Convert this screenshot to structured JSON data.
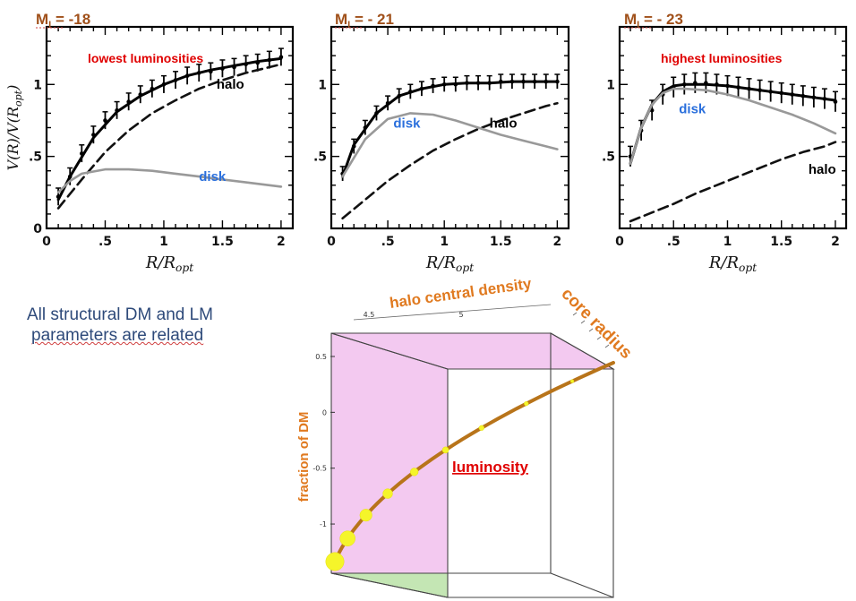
{
  "colors": {
    "panel_title": "#a0501a",
    "label_red": "#e00000",
    "label_blue": "#2a6fdc",
    "label_black": "#000000",
    "axis_text_orange": "#e07a20",
    "gray_curve": "#999999",
    "box_face": "#f3c9f0",
    "box_floor": "#c4e6b4",
    "curve3d": "#b8741a",
    "dots": "#f5f52a",
    "note_text": "#2e4a7a"
  },
  "note": {
    "line1": "All structural  DM and LM",
    "line2": "parameters are related"
  },
  "chart_data": [
    {
      "type": "line",
      "title": "M_I = -18",
      "annotation": "lowest luminosities",
      "xlabel": "R/R_opt",
      "ylabel": "V(R)/V(R_opt)",
      "xlim": [
        0,
        2.1
      ],
      "ylim": [
        0,
        1.4
      ],
      "xticks": [
        "0",
        ".5",
        "1",
        "1.5",
        "2"
      ],
      "yticks": [
        "0",
        ".5",
        "1"
      ],
      "series": [
        {
          "name": "data",
          "style": "points",
          "x": [
            0.1,
            0.2,
            0.3,
            0.4,
            0.5,
            0.6,
            0.7,
            0.8,
            0.9,
            1.0,
            1.1,
            1.2,
            1.3,
            1.4,
            1.5,
            1.6,
            1.7,
            1.8,
            1.9,
            2.0
          ],
          "y": [
            0.22,
            0.36,
            0.52,
            0.65,
            0.75,
            0.82,
            0.88,
            0.93,
            0.97,
            1.0,
            1.03,
            1.06,
            1.08,
            1.09,
            1.11,
            1.12,
            1.14,
            1.15,
            1.17,
            1.19
          ],
          "err": 0.06
        },
        {
          "name": "model",
          "style": "solid",
          "x": [
            0.1,
            0.2,
            0.4,
            0.6,
            0.8,
            1.0,
            1.2,
            1.4,
            1.6,
            1.8,
            2.0
          ],
          "y": [
            0.2,
            0.36,
            0.63,
            0.81,
            0.92,
            1.0,
            1.06,
            1.1,
            1.13,
            1.16,
            1.18
          ]
        },
        {
          "name": "halo",
          "style": "dashed",
          "x": [
            0.1,
            0.3,
            0.5,
            0.7,
            0.9,
            1.1,
            1.3,
            1.5,
            1.7,
            1.9,
            2.0
          ],
          "y": [
            0.14,
            0.34,
            0.53,
            0.68,
            0.8,
            0.89,
            0.97,
            1.03,
            1.08,
            1.12,
            1.14
          ]
        },
        {
          "name": "disk",
          "style": "gray",
          "x": [
            0.1,
            0.2,
            0.3,
            0.5,
            0.7,
            0.9,
            1.1,
            1.3,
            1.5,
            1.7,
            2.0
          ],
          "y": [
            0.25,
            0.33,
            0.38,
            0.41,
            0.41,
            0.4,
            0.38,
            0.36,
            0.34,
            0.32,
            0.29
          ]
        }
      ],
      "labels": [
        {
          "text": "halo",
          "x": 1.45,
          "y": 0.97,
          "color": "label_black"
        },
        {
          "text": "disk",
          "x": 1.3,
          "y": 0.33,
          "color": "label_blue"
        }
      ]
    },
    {
      "type": "line",
      "title": "M_I = - 21",
      "annotation": "",
      "xlabel": "R/R_opt",
      "ylabel": "",
      "xlim": [
        0,
        2.1
      ],
      "ylim": [
        0,
        1.4
      ],
      "xticks": [
        "0",
        ".5",
        "1",
        "1.5",
        "2"
      ],
      "yticks": [
        ".5",
        "1"
      ],
      "series": [
        {
          "name": "data",
          "style": "points",
          "x": [
            0.1,
            0.2,
            0.3,
            0.4,
            0.5,
            0.6,
            0.7,
            0.8,
            0.9,
            1.0,
            1.1,
            1.2,
            1.3,
            1.4,
            1.5,
            1.6,
            1.7,
            1.8,
            1.9,
            2.0
          ],
          "y": [
            0.38,
            0.57,
            0.7,
            0.8,
            0.87,
            0.92,
            0.95,
            0.97,
            0.99,
            1.0,
            1.0,
            1.01,
            1.01,
            1.01,
            1.02,
            1.02,
            1.02,
            1.02,
            1.02,
            1.02
          ],
          "err": 0.05
        },
        {
          "name": "model",
          "style": "solid",
          "x": [
            0.1,
            0.2,
            0.4,
            0.6,
            0.8,
            1.0,
            1.2,
            1.4,
            1.6,
            1.8,
            2.0
          ],
          "y": [
            0.36,
            0.58,
            0.8,
            0.92,
            0.97,
            1.0,
            1.01,
            1.01,
            1.02,
            1.02,
            1.02
          ]
        },
        {
          "name": "halo",
          "style": "dashed",
          "x": [
            0.1,
            0.3,
            0.5,
            0.7,
            0.9,
            1.1,
            1.3,
            1.5,
            1.7,
            1.9,
            2.0
          ],
          "y": [
            0.07,
            0.2,
            0.33,
            0.44,
            0.54,
            0.62,
            0.69,
            0.75,
            0.8,
            0.85,
            0.87
          ]
        },
        {
          "name": "disk",
          "style": "gray",
          "x": [
            0.1,
            0.3,
            0.5,
            0.7,
            0.9,
            1.1,
            1.3,
            1.5,
            1.7,
            1.9,
            2.0
          ],
          "y": [
            0.36,
            0.62,
            0.76,
            0.8,
            0.79,
            0.75,
            0.7,
            0.65,
            0.61,
            0.57,
            0.55
          ]
        }
      ],
      "labels": [
        {
          "text": "disk",
          "x": 0.55,
          "y": 0.7,
          "color": "label_blue"
        },
        {
          "text": "halo",
          "x": 1.4,
          "y": 0.7,
          "color": "label_black"
        }
      ]
    },
    {
      "type": "line",
      "title": "M_I = - 23",
      "annotation": "highest  luminosities",
      "xlabel": "R/R_opt",
      "ylabel": "",
      "xlim": [
        0,
        2.1
      ],
      "ylim": [
        0,
        1.4
      ],
      "xticks": [
        "0",
        ".5",
        "1",
        "1.5",
        "2"
      ],
      "yticks": [
        ".5",
        "1"
      ],
      "series": [
        {
          "name": "data",
          "style": "points",
          "x": [
            0.1,
            0.2,
            0.3,
            0.4,
            0.5,
            0.6,
            0.7,
            0.8,
            0.9,
            1.0,
            1.1,
            1.2,
            1.3,
            1.4,
            1.5,
            1.6,
            1.7,
            1.8,
            1.9,
            2.0
          ],
          "y": [
            0.5,
            0.68,
            0.82,
            0.93,
            0.98,
            1.0,
            1.01,
            1.01,
            1.0,
            0.99,
            0.98,
            0.97,
            0.96,
            0.95,
            0.94,
            0.93,
            0.92,
            0.91,
            0.9,
            0.88
          ],
          "err": 0.07
        },
        {
          "name": "model",
          "style": "solid",
          "x": [
            0.1,
            0.2,
            0.3,
            0.4,
            0.5,
            0.6,
            0.8,
            1.0,
            1.2,
            1.4,
            1.6,
            1.8,
            2.0
          ],
          "y": [
            0.45,
            0.7,
            0.86,
            0.95,
            0.99,
            1.0,
            1.0,
            0.99,
            0.97,
            0.95,
            0.93,
            0.91,
            0.89
          ]
        },
        {
          "name": "halo",
          "style": "dashed",
          "x": [
            0.1,
            0.3,
            0.5,
            0.7,
            0.9,
            1.1,
            1.3,
            1.5,
            1.7,
            1.9,
            2.0
          ],
          "y": [
            0.05,
            0.11,
            0.17,
            0.24,
            0.3,
            0.36,
            0.42,
            0.48,
            0.53,
            0.57,
            0.6
          ]
        },
        {
          "name": "disk",
          "style": "gray",
          "x": [
            0.1,
            0.2,
            0.3,
            0.4,
            0.5,
            0.6,
            0.8,
            1.0,
            1.2,
            1.4,
            1.6,
            1.8,
            2.0
          ],
          "y": [
            0.45,
            0.7,
            0.86,
            0.94,
            0.97,
            0.97,
            0.96,
            0.93,
            0.89,
            0.84,
            0.79,
            0.73,
            0.66
          ]
        }
      ],
      "labels": [
        {
          "text": "disk",
          "x": 0.55,
          "y": 0.8,
          "color": "label_blue"
        },
        {
          "text": "halo",
          "x": 1.75,
          "y": 0.38,
          "color": "label_black"
        }
      ]
    },
    {
      "type": "scatter",
      "title": "",
      "xlabel": "halo central density",
      "ylabel": "fraction of DM",
      "zlabel": "core radius",
      "annotation": "luminosity",
      "xticks": [
        "4.5",
        "5"
      ],
      "yticks": [
        "0.5",
        "0",
        "-0.5",
        "-1"
      ],
      "ylim": [
        -1.2,
        0.5
      ],
      "points": [
        {
          "t": 0.0,
          "size": 3
        },
        {
          "t": 0.12,
          "size": 2.5
        },
        {
          "t": 0.24,
          "size": 2
        },
        {
          "t": 0.35,
          "size": 1.6
        },
        {
          "t": 0.46,
          "size": 1.3
        },
        {
          "t": 0.57,
          "size": 1.05
        },
        {
          "t": 0.68,
          "size": 0.85
        },
        {
          "t": 0.8,
          "size": 0.7
        },
        {
          "t": 0.91,
          "size": 0.55
        }
      ]
    }
  ]
}
